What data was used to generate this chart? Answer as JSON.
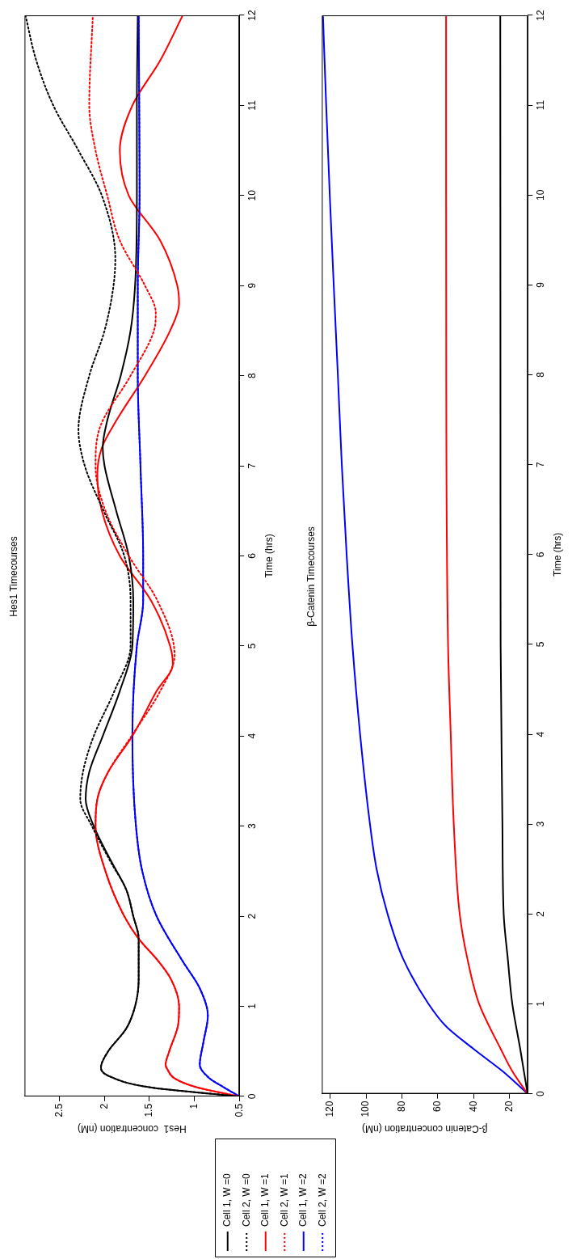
{
  "chart_data": [
    {
      "type": "line",
      "title": "Hes1 Timecourses",
      "ylabel": "Time (hrs)",
      "xlabel": "Hes1  concentration (nM)",
      "ylim": [
        0,
        12
      ],
      "yticks": [
        0,
        1,
        2,
        3,
        4,
        5,
        6,
        7,
        8,
        9,
        10,
        11,
        12
      ],
      "xlim": [
        2.89,
        0.5
      ],
      "xticks": [
        0.5,
        1,
        1.5,
        2,
        2.5
      ],
      "grid": false,
      "legend": "bottom right",
      "marker": "none",
      "series": [
        {
          "name": "Cell 1, W =0",
          "color": "#000000",
          "line_style": "solid",
          "values": [
            0,
            0.1,
            0.23,
            0.32,
            0.5,
            0.75,
            1,
            1.3,
            1.75,
            2,
            2.3,
            2.6,
            3,
            3.3,
            3.6,
            4,
            4.5,
            5,
            5.5,
            6,
            6.5,
            7,
            7.2,
            7.5,
            8,
            8.5,
            9,
            10,
            11,
            12
          ],
          "x": [
            0.5,
            1.49,
            1.96,
            2.04,
            1.96,
            1.76,
            1.66,
            1.62,
            1.62,
            1.68,
            1.76,
            1.92,
            2.12,
            2.21,
            2.17,
            2.02,
            1.83,
            1.69,
            1.68,
            1.73,
            1.87,
            2.0,
            2.02,
            1.97,
            1.82,
            1.71,
            1.66,
            1.64,
            1.64,
            1.63
          ]
        },
        {
          "name": "Cell 2, W =0",
          "color": "#000000",
          "line_style": "dotted",
          "values": [
            0,
            0.1,
            0.23,
            0.32,
            0.5,
            0.75,
            1,
            1.3,
            1.75,
            2,
            2.3,
            2.6,
            3,
            3.3,
            3.6,
            4,
            4.5,
            5,
            5.5,
            6,
            6.5,
            7,
            7.4,
            8,
            8.5,
            9,
            9.3,
            10,
            10.5,
            11,
            11.5,
            12
          ],
          "x": [
            0.5,
            1.49,
            1.96,
            2.04,
            1.96,
            1.76,
            1.66,
            1.62,
            1.62,
            1.68,
            1.76,
            1.93,
            2.14,
            2.27,
            2.24,
            2.12,
            1.89,
            1.71,
            1.71,
            1.78,
            2.01,
            2.22,
            2.29,
            2.17,
            2.0,
            1.9,
            1.88,
            2.03,
            2.29,
            2.57,
            2.76,
            2.88
          ]
        },
        {
          "name": "Cell 1, W =1",
          "color": "#ff0000",
          "line_style": "solid",
          "values": [
            0,
            0.1,
            0.2,
            0.3,
            0.35,
            0.5,
            0.8,
            1,
            1.3,
            1.5,
            1.75,
            2,
            2.5,
            3,
            3.3,
            3.6,
            4,
            4.5,
            4.8,
            5,
            5.5,
            6,
            6.5,
            6.9,
            7.2,
            7.5,
            8,
            8.5,
            8.8,
            9,
            9.5,
            10,
            10.5,
            11,
            11.5,
            12
          ],
          "x": [
            0.5,
            0.97,
            1.22,
            1.3,
            1.32,
            1.28,
            1.18,
            1.17,
            1.26,
            1.4,
            1.62,
            1.78,
            1.99,
            2.1,
            2.08,
            1.96,
            1.69,
            1.42,
            1.24,
            1.27,
            1.48,
            1.83,
            2.03,
            2.08,
            2.03,
            1.87,
            1.55,
            1.27,
            1.17,
            1.19,
            1.38,
            1.73,
            1.83,
            1.69,
            1.38,
            1.13
          ]
        },
        {
          "name": "Cell 2, W =1",
          "color": "#ff0000",
          "line_style": "dotted",
          "values": [
            0,
            0.1,
            0.2,
            0.3,
            0.35,
            0.5,
            0.8,
            1,
            1.3,
            1.5,
            1.75,
            2,
            2.5,
            3,
            3.3,
            3.6,
            4,
            4.5,
            4.9,
            5.5,
            6,
            6.5,
            7,
            7.4,
            8,
            8.5,
            8.7,
            9,
            9.5,
            10,
            10.5,
            11,
            12
          ],
          "x": [
            0.5,
            0.97,
            1.22,
            1.3,
            1.32,
            1.28,
            1.18,
            1.17,
            1.26,
            1.4,
            1.62,
            1.78,
            1.99,
            2.1,
            2.08,
            1.96,
            1.7,
            1.38,
            1.22,
            1.41,
            1.73,
            1.99,
            2.1,
            2.06,
            1.71,
            1.45,
            1.43,
            1.55,
            1.83,
            1.97,
            2.1,
            2.17,
            2.13
          ]
        },
        {
          "name": "Cell 1, W =2",
          "color": "#0000ff",
          "line_style": "solid",
          "values": [
            0,
            0.1,
            0.2,
            0.35,
            0.6,
            0.9,
            1.2,
            1.5,
            2,
            2.5,
            3,
            4,
            5,
            5.5,
            6,
            7,
            8,
            9,
            10,
            12
          ],
          "x": [
            0.5,
            0.67,
            0.83,
            0.94,
            0.9,
            0.85,
            0.94,
            1.13,
            1.42,
            1.58,
            1.65,
            1.69,
            1.64,
            1.57,
            1.57,
            1.6,
            1.63,
            1.63,
            1.61,
            1.62
          ]
        },
        {
          "name": "Cell 2, W =2",
          "color": "#0000ff",
          "line_style": "dotted",
          "values": [
            0,
            0.1,
            0.2,
            0.35,
            0.6,
            0.9,
            1.2,
            1.5,
            2,
            2.5,
            3,
            4,
            5,
            5.5,
            6,
            7,
            8,
            9,
            10,
            12
          ],
          "x": [
            0.5,
            0.67,
            0.83,
            0.94,
            0.9,
            0.85,
            0.94,
            1.13,
            1.42,
            1.58,
            1.65,
            1.69,
            1.64,
            1.57,
            1.57,
            1.6,
            1.63,
            1.63,
            1.61,
            1.62
          ]
        }
      ]
    },
    {
      "type": "line",
      "title": "β-Catenin Timecourses",
      "ylabel": "Time (hrs)",
      "xlabel": "β-Catenin concentration (nM)",
      "ylim": [
        0,
        12
      ],
      "yticks": [
        0,
        1,
        2,
        3,
        4,
        5,
        6,
        7,
        8,
        9,
        10,
        11,
        12
      ],
      "xlim": [
        124.6,
        9.9
      ],
      "xticks": [
        20,
        40,
        60,
        80,
        100,
        120
      ],
      "grid": false,
      "marker": "none",
      "series": [
        {
          "color": "#000000",
          "line_style": "solid",
          "values": [
            0,
            0.5,
            1,
            1.5,
            2,
            3,
            5,
            8,
            12
          ],
          "x": [
            10,
            14.1,
            18.5,
            21,
            23.3,
            24,
            25,
            25.1,
            25.2
          ]
        },
        {
          "color": "#ff0000",
          "line_style": "solid",
          "values": [
            0,
            0.25,
            0.5,
            1,
            1.5,
            2,
            3,
            4,
            5,
            8,
            12
          ],
          "x": [
            10,
            18.5,
            25,
            37,
            43.5,
            47.8,
            51.1,
            52.8,
            54.3,
            55.3,
            55.4
          ]
        },
        {
          "color": "#0000ff",
          "line_style": "solid",
          "values": [
            0,
            0.25,
            0.5,
            0.75,
            1,
            1.5,
            2,
            2.5,
            3,
            4,
            5,
            6,
            7,
            8,
            9,
            10,
            11,
            12
          ],
          "x": [
            10,
            23.9,
            40.2,
            55.4,
            65.2,
            79.3,
            88,
            94.1,
            97.8,
            103.3,
            107.6,
            110.8,
            113.5,
            115.7,
            118,
            120.2,
            122.2,
            124
          ]
        }
      ]
    }
  ]
}
